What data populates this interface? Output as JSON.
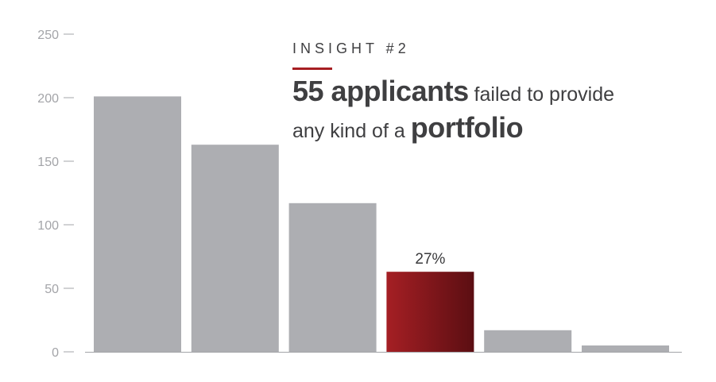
{
  "insight": {
    "eyebrow": "INSIGHT #2",
    "headline_bold_1": "55 applicants",
    "headline_text_1": " failed to provide",
    "headline_text_2": "any kind of a ",
    "headline_bold_2": "portfolio"
  },
  "colors": {
    "bar": "#adaeb2",
    "highlight_start": "#a51f24",
    "highlight_end": "#5b0e12",
    "accent": "#a61e22",
    "axis": "#a3a4a8",
    "text": "#3f3f41"
  },
  "chart_data": {
    "type": "bar",
    "categories": [
      "",
      "",
      "",
      "",
      "",
      ""
    ],
    "values": [
      201,
      163,
      117,
      63,
      17,
      5
    ],
    "highlight_index": 3,
    "data_labels": [
      {
        "index": 3,
        "text": "27%"
      }
    ],
    "ylim": [
      0,
      250
    ],
    "yticks": [
      0,
      50,
      100,
      150,
      200,
      250
    ],
    "title": "",
    "xlabel": "",
    "ylabel": "",
    "grid": false,
    "legend": "none"
  }
}
